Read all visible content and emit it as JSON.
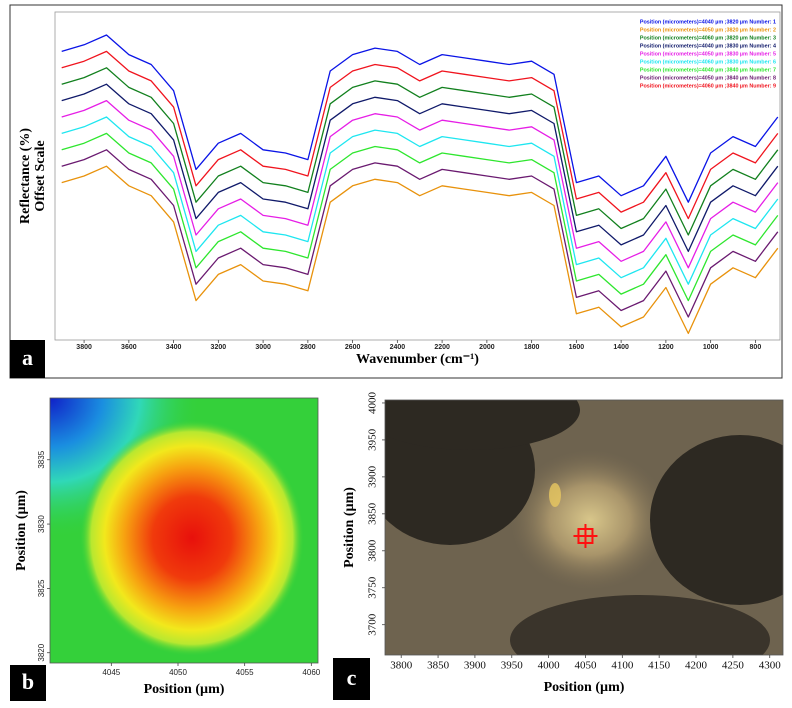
{
  "chart_data": [
    {
      "type": "line",
      "label": "a",
      "xlabel": "Wavenumber (cm⁻¹)",
      "ylabel": [
        "Reflectance (%)",
        "Offset Scale"
      ],
      "x": [
        3900,
        3800,
        3700,
        3600,
        3500,
        3400,
        3300,
        3200,
        3100,
        3000,
        2900,
        2800,
        2700,
        2600,
        2500,
        2400,
        2300,
        2200,
        2100,
        2000,
        1900,
        1800,
        1700,
        1600,
        1500,
        1400,
        1300,
        1200,
        1100,
        1000,
        900,
        800,
        700
      ],
      "xlim": [
        3930,
        690
      ],
      "xticks": [
        3800,
        3600,
        3400,
        3200,
        3000,
        2800,
        2600,
        2400,
        2200,
        2000,
        1800,
        1600,
        1400,
        1200,
        1000,
        800
      ],
      "ylim": [
        0,
        100
      ],
      "series": [
        {
          "name": "Position (micrometers)=4040 µm ;3820 µm  Number: 1",
          "color": "#0a14e6",
          "values": [
            88,
            90,
            93,
            87,
            84,
            76,
            52,
            60,
            63,
            58,
            57,
            55,
            82,
            87,
            89,
            88,
            84,
            87,
            86,
            85,
            84,
            85,
            81,
            48,
            50,
            44,
            47,
            56,
            42,
            57,
            62,
            59,
            68
          ]
        },
        {
          "name": "Position (micrometers)=4050 µm ;3820 µm  Number: 2",
          "color": "#e8920c",
          "values": [
            48,
            50,
            53,
            47,
            44,
            36,
            12,
            20,
            23,
            18,
            17,
            15,
            42,
            47,
            49,
            48,
            44,
            47,
            46,
            45,
            44,
            45,
            41,
            8,
            10,
            4,
            7,
            16,
            2,
            17,
            22,
            19,
            28
          ]
        },
        {
          "name": "Position (micrometers)=4060 µm ;3820 µm  Number: 3",
          "color": "#12801e",
          "values": [
            78,
            80,
            83,
            77,
            74,
            66,
            42,
            50,
            53,
            48,
            47,
            45,
            72,
            77,
            79,
            78,
            74,
            77,
            76,
            75,
            74,
            75,
            71,
            38,
            40,
            34,
            37,
            46,
            32,
            47,
            52,
            49,
            58
          ]
        },
        {
          "name": "Position (micrometers)=4040 µm ;3830 µm  Number: 4",
          "color": "#101a6a",
          "values": [
            73,
            75,
            78,
            72,
            69,
            61,
            37,
            45,
            48,
            43,
            42,
            40,
            67,
            72,
            74,
            73,
            69,
            72,
            71,
            70,
            69,
            70,
            66,
            33,
            35,
            29,
            32,
            41,
            27,
            42,
            47,
            44,
            53
          ]
        },
        {
          "name": "Position (micrometers)=4050 µm ;3830 µm  Number: 5",
          "color": "#e61ee6",
          "values": [
            68,
            70,
            73,
            67,
            64,
            56,
            32,
            40,
            43,
            38,
            37,
            35,
            62,
            67,
            69,
            68,
            64,
            67,
            66,
            65,
            64,
            65,
            61,
            28,
            30,
            24,
            27,
            36,
            22,
            37,
            42,
            39,
            48
          ]
        },
        {
          "name": "Position (micrometers)=4060 µm ;3830 µm  Number: 6",
          "color": "#1ee6f0",
          "values": [
            63,
            65,
            68,
            62,
            59,
            51,
            27,
            35,
            38,
            33,
            32,
            30,
            57,
            62,
            64,
            63,
            59,
            62,
            61,
            60,
            59,
            60,
            56,
            23,
            25,
            19,
            22,
            31,
            17,
            32,
            37,
            34,
            43
          ]
        },
        {
          "name": "Position (micrometers)=4040 µm ;3840 µm  Number: 7",
          "color": "#2ee62e",
          "values": [
            58,
            60,
            63,
            57,
            54,
            46,
            22,
            30,
            33,
            28,
            27,
            25,
            52,
            57,
            59,
            58,
            54,
            57,
            56,
            55,
            54,
            55,
            51,
            18,
            20,
            14,
            17,
            26,
            12,
            27,
            32,
            29,
            38
          ]
        },
        {
          "name": "Position (micrometers)=4050 µm ;3840 µm  Number: 8",
          "color": "#6a1a70",
          "values": [
            53,
            55,
            58,
            52,
            49,
            41,
            17,
            25,
            28,
            23,
            22,
            20,
            47,
            52,
            54,
            53,
            49,
            52,
            51,
            50,
            49,
            50,
            46,
            13,
            15,
            9,
            12,
            21,
            7,
            22,
            27,
            24,
            33
          ]
        },
        {
          "name": "Position (micrometers)=4060 µm ;3840 µm  Number: 9",
          "color": "#f0141e",
          "values": [
            83,
            85,
            88,
            82,
            79,
            71,
            47,
            55,
            58,
            53,
            52,
            50,
            77,
            82,
            84,
            83,
            79,
            82,
            81,
            80,
            79,
            80,
            76,
            43,
            45,
            39,
            42,
            51,
            37,
            52,
            57,
            54,
            63
          ]
        }
      ]
    },
    {
      "type": "heatmap",
      "label": "b",
      "xlabel": "Position (µm)",
      "ylabel": "Position (µm)",
      "xlim": [
        4040.4,
        4060.5
      ],
      "xticks": [
        4045,
        4050,
        4055,
        4060
      ],
      "ylim": [
        3819.2,
        3839.8
      ],
      "yticks": [
        3820,
        3825,
        3830,
        3835
      ]
    },
    {
      "type": "image",
      "label": "c",
      "xlabel": "Position (µm)",
      "ylabel": "Position (µm)",
      "xlim": [
        3778,
        4318
      ],
      "xticks": [
        3800,
        3850,
        3900,
        3950,
        4000,
        4050,
        4100,
        4150,
        4200,
        4250,
        4300
      ],
      "ylim": [
        3659,
        4004
      ],
      "yticks": [
        3700,
        3750,
        3800,
        3850,
        3900,
        3950,
        4000
      ],
      "marker": {
        "x": 4050,
        "y": 3820,
        "color": "#ff1010"
      }
    }
  ]
}
